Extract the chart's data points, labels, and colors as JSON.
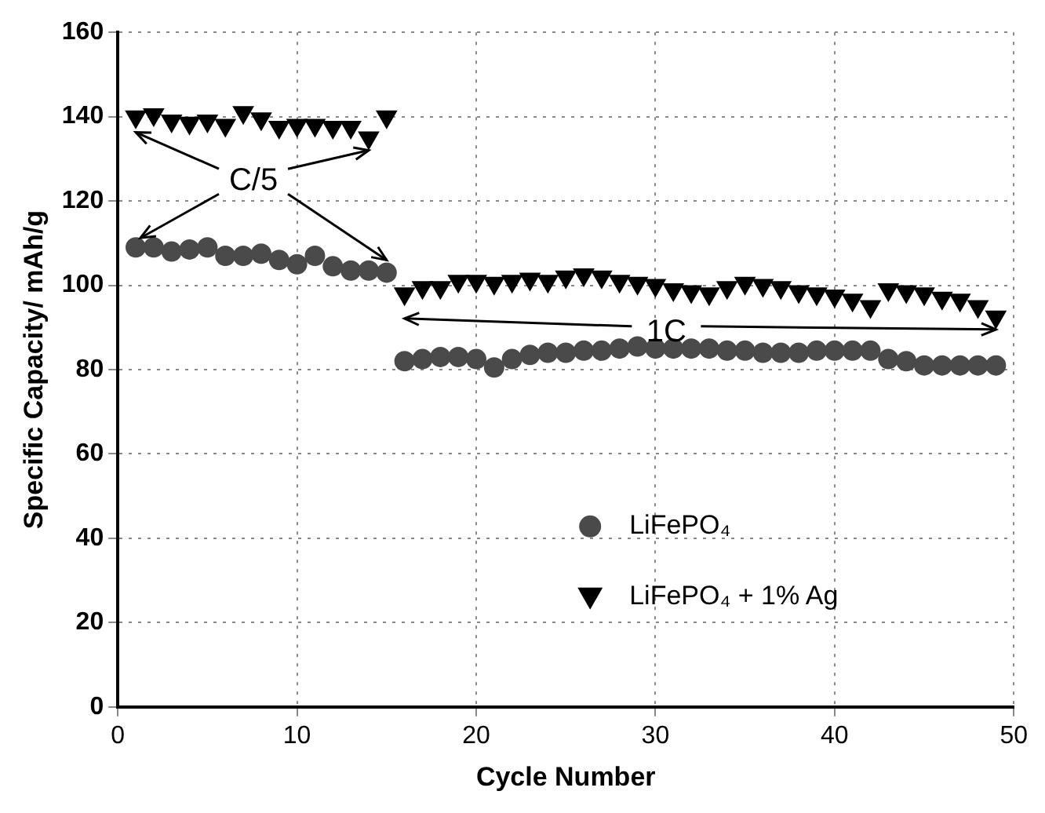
{
  "chart_data": {
    "type": "scatter",
    "xlabel": "Cycle Number",
    "ylabel": "Specific Capacity/ mAh/g",
    "x": [
      1,
      2,
      3,
      4,
      5,
      6,
      7,
      8,
      9,
      10,
      11,
      12,
      13,
      14,
      15,
      16,
      17,
      18,
      19,
      20,
      21,
      22,
      23,
      24,
      25,
      26,
      27,
      28,
      29,
      30,
      31,
      32,
      33,
      34,
      35,
      36,
      37,
      38,
      39,
      40,
      41,
      42,
      43,
      44,
      45,
      46,
      47,
      48,
      49
    ],
    "series": [
      {
        "name": "LiFePO₄",
        "color": "#4a4a4a",
        "marker": "circle",
        "values": [
          109,
          109,
          108,
          108.5,
          109,
          107,
          107,
          107.5,
          106,
          105,
          107,
          104.5,
          103.5,
          103.5,
          103,
          82,
          82.5,
          83,
          83,
          82.5,
          80.5,
          82.5,
          83.5,
          84,
          84,
          84.5,
          84.5,
          85,
          85.5,
          85,
          85,
          85,
          85,
          84.5,
          84.5,
          84,
          84,
          84,
          84.5,
          84.5,
          84.5,
          84.5,
          82.5,
          82,
          81,
          81,
          81,
          81,
          81
        ]
      },
      {
        "name": "LiFePO₄ + 1% Ag",
        "color": "#000000",
        "marker": "triangle",
        "values": [
          140,
          140.5,
          139,
          138.5,
          139,
          138,
          141,
          139.5,
          137.5,
          138,
          138,
          137.5,
          137.5,
          135,
          140,
          98,
          99.5,
          99.5,
          101,
          101,
          100.5,
          101,
          101.5,
          101,
          102,
          102.5,
          102,
          101,
          100.5,
          100,
          99,
          98.5,
          98,
          99.5,
          100.5,
          100,
          99.5,
          98.5,
          98,
          97.5,
          96.5,
          95,
          99,
          98.5,
          98,
          97,
          96.5,
          95,
          92.5
        ]
      }
    ],
    "xlim": [
      0,
      50
    ],
    "xticks": [
      0,
      10,
      20,
      30,
      40,
      50
    ],
    "ylim": [
      0,
      160
    ],
    "yticks": [
      0,
      20,
      40,
      60,
      80,
      100,
      120,
      140,
      160
    ],
    "grid": true,
    "legend": "bottom right",
    "annotations": [
      {
        "text": "C/5",
        "x": 1,
        "y": 109
      },
      {
        "text": "1C",
        "x": 49,
        "y": 92.5
      }
    ]
  }
}
